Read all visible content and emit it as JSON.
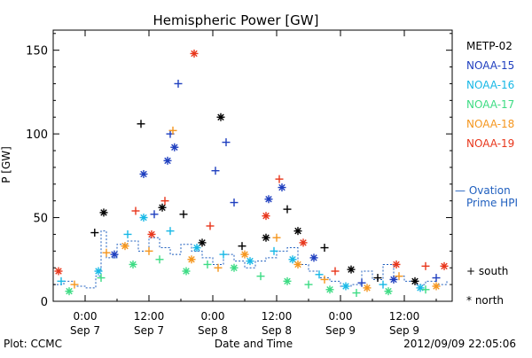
{
  "chart_data": {
    "type": "scatter",
    "title": "Hemispheric Power [GW]",
    "ylabel": "P [GW]",
    "xlabel": "Date and Time",
    "ylim": [
      0,
      162
    ],
    "xlim_hours": [
      -6,
      69
    ],
    "yticks": [
      0,
      50,
      100,
      150
    ],
    "xticks": [
      {
        "hour": 0,
        "time": "0:00",
        "date": "Sep 7"
      },
      {
        "hour": 12,
        "time": "12:00",
        "date": "Sep 7"
      },
      {
        "hour": 24,
        "time": "0:00",
        "date": "Sep 8"
      },
      {
        "hour": 36,
        "time": "12:00",
        "date": "Sep 8"
      },
      {
        "hour": 48,
        "time": "0:00",
        "date": "Sep 9"
      },
      {
        "hour": 60,
        "time": "12:00",
        "date": "Sep 9"
      }
    ],
    "legend": {
      "placement": "right",
      "entries": [
        {
          "label": "METP-02",
          "color": "#000000"
        },
        {
          "label": "NOAA-15",
          "color": "#1f3fbf"
        },
        {
          "label": "NOAA-16",
          "color": "#17b8e6"
        },
        {
          "label": "NOAA-17",
          "color": "#3ddc84"
        },
        {
          "label": "NOAA-18",
          "color": "#f5961e"
        },
        {
          "label": "NOAA-19",
          "color": "#e8361b"
        }
      ],
      "ovation_label_1": "— Ovation",
      "ovation_label_2": "Prime HPI",
      "ovation_color": "#1f5fbf",
      "marker_south": "+ south",
      "marker_north": "* north"
    },
    "series": [
      {
        "name": "METP-02",
        "color": "#000000",
        "points": [
          {
            "h": 1.8,
            "v": 41,
            "m": "+"
          },
          {
            "h": 3.5,
            "v": 53,
            "m": "*"
          },
          {
            "h": 10.5,
            "v": 106,
            "m": "+"
          },
          {
            "h": 14.5,
            "v": 56,
            "m": "*"
          },
          {
            "h": 18.5,
            "v": 52,
            "m": "+"
          },
          {
            "h": 22,
            "v": 35,
            "m": "*"
          },
          {
            "h": 25.5,
            "v": 110,
            "m": "*"
          },
          {
            "h": 29.5,
            "v": 33,
            "m": "+"
          },
          {
            "h": 34,
            "v": 38,
            "m": "*"
          },
          {
            "h": 38,
            "v": 55,
            "m": "+"
          },
          {
            "h": 40,
            "v": 42,
            "m": "*"
          },
          {
            "h": 45,
            "v": 32,
            "m": "+"
          },
          {
            "h": 50,
            "v": 19,
            "m": "*"
          },
          {
            "h": 55,
            "v": 14,
            "m": "+"
          },
          {
            "h": 62,
            "v": 12,
            "m": "*"
          }
        ]
      },
      {
        "name": "NOAA-15",
        "color": "#1f3fbf",
        "points": [
          {
            "h": 5.5,
            "v": 28,
            "m": "*"
          },
          {
            "h": 11,
            "v": 76,
            "m": "*"
          },
          {
            "h": 13,
            "v": 52,
            "m": "+"
          },
          {
            "h": 15.5,
            "v": 84,
            "m": "*"
          },
          {
            "h": 16,
            "v": 100,
            "m": "+"
          },
          {
            "h": 16.8,
            "v": 92,
            "m": "*"
          },
          {
            "h": 17.5,
            "v": 130,
            "m": "+"
          },
          {
            "h": 24.5,
            "v": 78,
            "m": "+"
          },
          {
            "h": 26.5,
            "v": 95,
            "m": "+"
          },
          {
            "h": 28,
            "v": 59,
            "m": "+"
          },
          {
            "h": 34.5,
            "v": 61,
            "m": "*"
          },
          {
            "h": 37,
            "v": 68,
            "m": "*"
          },
          {
            "h": 43,
            "v": 26,
            "m": "*"
          },
          {
            "h": 52,
            "v": 11,
            "m": "+"
          },
          {
            "h": 58,
            "v": 13,
            "m": "*"
          },
          {
            "h": 66,
            "v": 14,
            "m": "+"
          }
        ]
      },
      {
        "name": "NOAA-16",
        "color": "#17b8e6",
        "points": [
          {
            "h": -4.5,
            "v": 12,
            "m": "+"
          },
          {
            "h": 2.5,
            "v": 18,
            "m": "*"
          },
          {
            "h": 8,
            "v": 40,
            "m": "+"
          },
          {
            "h": 11,
            "v": 50,
            "m": "*"
          },
          {
            "h": 16,
            "v": 42,
            "m": "+"
          },
          {
            "h": 21,
            "v": 32,
            "m": "*"
          },
          {
            "h": 26,
            "v": 28,
            "m": "+"
          },
          {
            "h": 31,
            "v": 24,
            "m": "*"
          },
          {
            "h": 35.5,
            "v": 30,
            "m": "+"
          },
          {
            "h": 39,
            "v": 25,
            "m": "*"
          },
          {
            "h": 44,
            "v": 16,
            "m": "+"
          },
          {
            "h": 49,
            "v": 9,
            "m": "*"
          },
          {
            "h": 56,
            "v": 10,
            "m": "+"
          },
          {
            "h": 63,
            "v": 8,
            "m": "*"
          }
        ]
      },
      {
        "name": "NOAA-17",
        "color": "#3ddc84",
        "points": [
          {
            "h": -3,
            "v": 6,
            "m": "*"
          },
          {
            "h": 3,
            "v": 14,
            "m": "+"
          },
          {
            "h": 9,
            "v": 22,
            "m": "*"
          },
          {
            "h": 14,
            "v": 25,
            "m": "+"
          },
          {
            "h": 19,
            "v": 18,
            "m": "*"
          },
          {
            "h": 23,
            "v": 22,
            "m": "+"
          },
          {
            "h": 28,
            "v": 20,
            "m": "*"
          },
          {
            "h": 33,
            "v": 15,
            "m": "+"
          },
          {
            "h": 38,
            "v": 12,
            "m": "*"
          },
          {
            "h": 42,
            "v": 10,
            "m": "+"
          },
          {
            "h": 46,
            "v": 7,
            "m": "*"
          },
          {
            "h": 51,
            "v": 5,
            "m": "+"
          },
          {
            "h": 57,
            "v": 6,
            "m": "*"
          },
          {
            "h": 64,
            "v": 7,
            "m": "+"
          }
        ]
      },
      {
        "name": "NOAA-18",
        "color": "#f5961e",
        "points": [
          {
            "h": -2,
            "v": 10,
            "m": "+"
          },
          {
            "h": 4,
            "v": 29,
            "m": "+"
          },
          {
            "h": 7.5,
            "v": 33,
            "m": "*"
          },
          {
            "h": 12,
            "v": 30,
            "m": "+"
          },
          {
            "h": 16.5,
            "v": 102,
            "m": "+"
          },
          {
            "h": 20,
            "v": 25,
            "m": "*"
          },
          {
            "h": 25,
            "v": 20,
            "m": "+"
          },
          {
            "h": 30,
            "v": 28,
            "m": "*"
          },
          {
            "h": 36,
            "v": 38,
            "m": "+"
          },
          {
            "h": 40,
            "v": 22,
            "m": "*"
          },
          {
            "h": 45,
            "v": 13,
            "m": "+"
          },
          {
            "h": 53,
            "v": 8,
            "m": "*"
          },
          {
            "h": 59,
            "v": 15,
            "m": "+"
          },
          {
            "h": 66,
            "v": 9,
            "m": "*"
          }
        ]
      },
      {
        "name": "NOAA-19",
        "color": "#e8361b",
        "points": [
          {
            "h": -5,
            "v": 18,
            "m": "*"
          },
          {
            "h": 9.5,
            "v": 54,
            "m": "+"
          },
          {
            "h": 12.5,
            "v": 40,
            "m": "*"
          },
          {
            "h": 15,
            "v": 60,
            "m": "+"
          },
          {
            "h": 20.5,
            "v": 148,
            "m": "*"
          },
          {
            "h": 23.5,
            "v": 45,
            "m": "+"
          },
          {
            "h": 34,
            "v": 51,
            "m": "*"
          },
          {
            "h": 36.5,
            "v": 73,
            "m": "+"
          },
          {
            "h": 41,
            "v": 35,
            "m": "*"
          },
          {
            "h": 47,
            "v": 18,
            "m": "+"
          },
          {
            "h": 58.5,
            "v": 22,
            "m": "*"
          },
          {
            "h": 64,
            "v": 21,
            "m": "+"
          },
          {
            "h": 67.5,
            "v": 21,
            "m": "*"
          }
        ]
      }
    ],
    "ovation_hpi": {
      "color": "#1f5fbf",
      "points": [
        {
          "h": -6,
          "v": 10
        },
        {
          "h": -4,
          "v": 12
        },
        {
          "h": -2,
          "v": 9
        },
        {
          "h": 0,
          "v": 8
        },
        {
          "h": 2,
          "v": 15
        },
        {
          "h": 3,
          "v": 42
        },
        {
          "h": 4,
          "v": 26
        },
        {
          "h": 6,
          "v": 34
        },
        {
          "h": 8,
          "v": 36
        },
        {
          "h": 10,
          "v": 30
        },
        {
          "h": 12,
          "v": 38
        },
        {
          "h": 14,
          "v": 32
        },
        {
          "h": 16,
          "v": 28
        },
        {
          "h": 18,
          "v": 34
        },
        {
          "h": 20,
          "v": 30
        },
        {
          "h": 22,
          "v": 26
        },
        {
          "h": 24,
          "v": 22
        },
        {
          "h": 26,
          "v": 28
        },
        {
          "h": 28,
          "v": 24
        },
        {
          "h": 30,
          "v": 20
        },
        {
          "h": 32,
          "v": 24
        },
        {
          "h": 34,
          "v": 26
        },
        {
          "h": 36,
          "v": 30
        },
        {
          "h": 38,
          "v": 32
        },
        {
          "h": 40,
          "v": 22
        },
        {
          "h": 42,
          "v": 18
        },
        {
          "h": 44,
          "v": 14
        },
        {
          "h": 46,
          "v": 12
        },
        {
          "h": 48,
          "v": 9
        },
        {
          "h": 50,
          "v": 10
        },
        {
          "h": 52,
          "v": 18
        },
        {
          "h": 54,
          "v": 13
        },
        {
          "h": 56,
          "v": 22
        },
        {
          "h": 58,
          "v": 15
        },
        {
          "h": 60,
          "v": 12
        },
        {
          "h": 62,
          "v": 10
        },
        {
          "h": 64,
          "v": 12
        },
        {
          "h": 66,
          "v": 10
        },
        {
          "h": 68,
          "v": 12
        }
      ]
    }
  },
  "footer": {
    "left": "Plot: CCMC",
    "timestamp": "2012/09/09 22:05:06"
  }
}
